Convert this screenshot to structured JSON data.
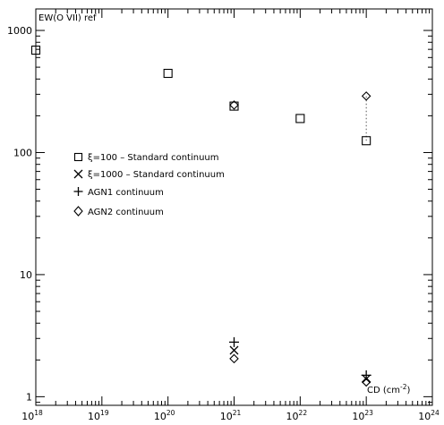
{
  "chart_data": {
    "type": "scatter",
    "title": "",
    "ylabel": "EW(O VII) ref",
    "xlabel": "CD (cm⁻²)",
    "xlabel_parts": {
      "text": "CD (cm",
      "sup": "-2",
      "close": ")"
    },
    "x_scale": "log",
    "y_scale": "log",
    "xlim": [
      1e+18,
      1e+24
    ],
    "ylim": [
      0.85,
      1500
    ],
    "x_ticks": [
      {
        "value": 1e+18,
        "base": "10",
        "exp": "18"
      },
      {
        "value": 1e+19,
        "base": "10",
        "exp": "19"
      },
      {
        "value": 1e+20,
        "base": "10",
        "exp": "20"
      },
      {
        "value": 1e+21,
        "base": "10",
        "exp": "21"
      },
      {
        "value": 1e+22,
        "base": "10",
        "exp": "22"
      },
      {
        "value": 1e+23,
        "base": "10",
        "exp": "23"
      },
      {
        "value": 1e+24,
        "base": "10",
        "exp": "24"
      }
    ],
    "y_ticks": [
      {
        "value": 1,
        "label": "1"
      },
      {
        "value": 10,
        "label": "10"
      },
      {
        "value": 100,
        "label": "100"
      },
      {
        "value": 1000,
        "label": "1000"
      }
    ],
    "legend_position": "center-left",
    "series": [
      {
        "name_prefix": "ξ=100",
        "name_suffix": " – Standard continuum",
        "marker": "square",
        "x": [
          1e+18,
          1e+20,
          1e+21,
          1e+22,
          1e+23
        ],
        "y": [
          690,
          445,
          240,
          190,
          125
        ]
      },
      {
        "name_prefix": "ξ=1000",
        "name_suffix": " – Standard continuum",
        "marker": "x",
        "x": [
          1e+21,
          1e+23
        ],
        "y": [
          2.4,
          1.4
        ]
      },
      {
        "name_prefix": "",
        "name_suffix": "AGN1 continuum",
        "marker": "plus",
        "x": [
          1e+21,
          1e+23
        ],
        "y": [
          2.8,
          1.5
        ]
      },
      {
        "name_prefix": "",
        "name_suffix": "AGN2 continuum",
        "marker": "diamond",
        "x": [
          1e+21,
          1e+21,
          1e+23,
          1e+23
        ],
        "y": [
          245,
          2.05,
          290,
          1.32
        ]
      }
    ],
    "annotations": [
      {
        "type": "dotted-line",
        "x": [
          1e+23,
          1e+23
        ],
        "y": [
          125,
          290
        ]
      }
    ]
  }
}
